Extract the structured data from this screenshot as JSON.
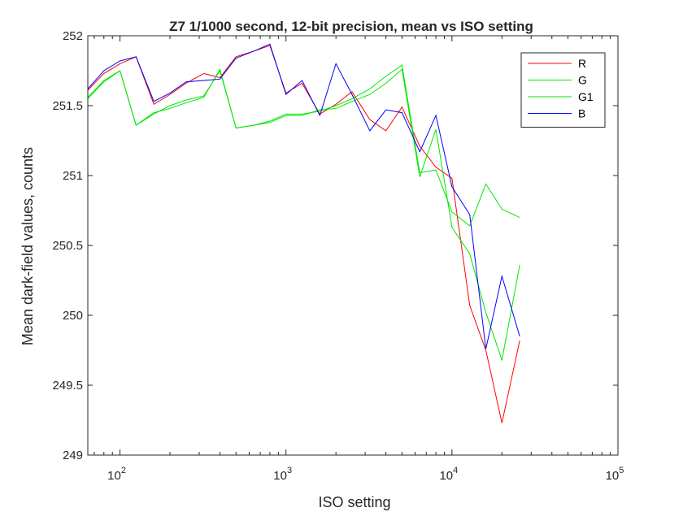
{
  "chart_data": {
    "type": "line",
    "title": "Z7 1/1000 second, 12-bit precision, mean vs ISO setting",
    "xlabel": "ISO setting",
    "ylabel": "Mean dark-field values, counts",
    "xscale": "log",
    "xlim": [
      64,
      100000
    ],
    "ylim": [
      249,
      252
    ],
    "yticks": [
      249,
      249.5,
      250,
      250.5,
      251,
      251.5,
      252
    ],
    "xticks": [
      {
        "value": 100,
        "base": "10",
        "exp": "2"
      },
      {
        "value": 1000,
        "base": "10",
        "exp": "3"
      },
      {
        "value": 10000,
        "base": "10",
        "exp": "4"
      },
      {
        "value": 100000,
        "base": "10",
        "exp": "5"
      }
    ],
    "grid": false,
    "legend_position": "top-right",
    "x": [
      64,
      80,
      100,
      125,
      160,
      200,
      250,
      320,
      400,
      500,
      640,
      800,
      1000,
      1250,
      1600,
      2000,
      2500,
      3200,
      4000,
      5000,
      6400,
      8000,
      10000,
      12800,
      16000,
      20000,
      25600
    ],
    "series": [
      {
        "name": "R",
        "color": "#ff0000",
        "values": [
          251.61,
          251.73,
          251.8,
          251.85,
          251.51,
          251.58,
          251.66,
          251.73,
          251.7,
          251.85,
          251.89,
          251.93,
          251.59,
          251.66,
          251.44,
          251.51,
          251.6,
          251.4,
          251.32,
          251.49,
          251.21,
          251.06,
          250.98,
          250.07,
          249.75,
          249.23,
          249.82
        ]
      },
      {
        "name": "G",
        "color": "#00e600",
        "values": [
          251.56,
          251.68,
          251.75,
          251.36,
          251.44,
          251.5,
          251.54,
          251.57,
          251.75,
          251.34,
          251.36,
          251.39,
          251.44,
          251.44,
          251.46,
          251.5,
          251.55,
          251.62,
          251.71,
          251.79,
          251.02,
          251.04,
          250.74,
          250.64,
          250.94,
          250.76,
          250.7
        ]
      },
      {
        "name": "G1",
        "color": "#00e600",
        "values": [
          251.55,
          251.67,
          251.75,
          251.36,
          251.45,
          251.48,
          251.52,
          251.56,
          251.76,
          251.34,
          251.36,
          251.38,
          251.43,
          251.43,
          251.47,
          251.48,
          251.53,
          251.58,
          251.66,
          251.76,
          250.99,
          251.33,
          250.63,
          250.44,
          250.02,
          249.68,
          250.36
        ]
      },
      {
        "name": "B",
        "color": "#0000ff",
        "values": [
          251.62,
          251.75,
          251.82,
          251.85,
          251.53,
          251.59,
          251.67,
          251.68,
          251.69,
          251.84,
          251.89,
          251.94,
          251.58,
          251.68,
          251.43,
          251.8,
          251.58,
          251.32,
          251.47,
          251.45,
          251.17,
          251.43,
          250.92,
          250.72,
          249.76,
          250.28,
          249.85
        ]
      }
    ]
  }
}
